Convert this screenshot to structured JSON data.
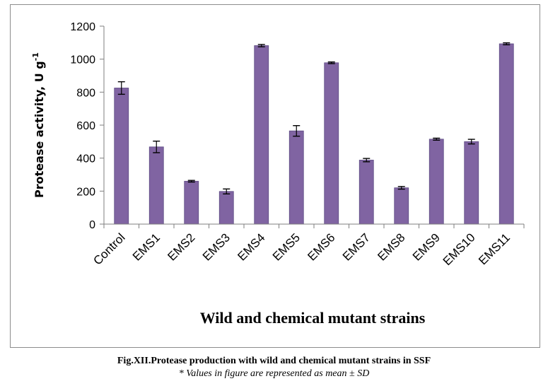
{
  "chart_data": {
    "type": "bar",
    "categories": [
      "Control",
      "EMS1",
      "EMS2",
      "EMS3",
      "EMS4",
      "EMS5",
      "EMS6",
      "EMS7",
      "EMS8",
      "EMS9",
      "EMS10",
      "EMS11"
    ],
    "values": [
      825,
      468,
      260,
      198,
      1082,
      565,
      978,
      388,
      220,
      515,
      500,
      1093
    ],
    "errors": [
      38,
      35,
      5,
      15,
      7,
      32,
      5,
      10,
      8,
      6,
      14,
      6
    ],
    "title": "",
    "xlabel": "Wild and chemical mutant strains",
    "ylabel_main": "Protease activity, U g",
    "ylabel_superscript": "-1",
    "ylim": [
      0,
      1200
    ],
    "yticks": [
      "0",
      "200",
      "400",
      "600",
      "800",
      "1000",
      "1200"
    ],
    "grid": false,
    "legend": "none",
    "bar_color": "#8064a2",
    "bar_edge_color": "#5c4a82"
  },
  "caption": {
    "title": "Fig.XII.Protease production with wild and chemical mutant strains in SSF",
    "note": "* Values in figure are represented as mean ± SD"
  }
}
